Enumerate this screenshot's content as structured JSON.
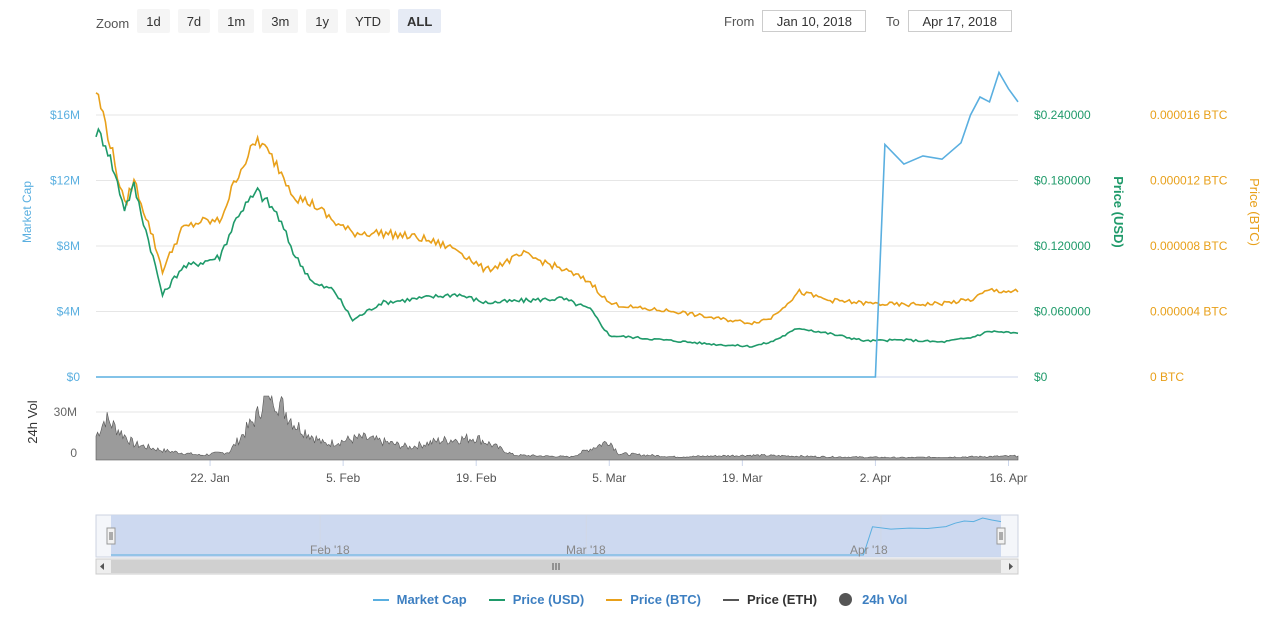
{
  "toolbar": {
    "zoom_label": "Zoom",
    "buttons": [
      "1d",
      "7d",
      "1m",
      "3m",
      "1y",
      "YTD",
      "ALL"
    ],
    "active": "ALL",
    "from_label": "From",
    "from_value": "Jan 10, 2018",
    "to_label": "To",
    "to_value": "Apr 17, 2018"
  },
  "chart_data": {
    "type": "line",
    "colors": {
      "market_cap": "#5aafe0",
      "price_usd": "#1f9a6a",
      "price_btc": "#e8a01a",
      "price_eth": "#555555",
      "volume": "#555555"
    },
    "axes": {
      "market_cap": {
        "label": "Market Cap",
        "ticks": [
          "$0",
          "$4M",
          "$8M",
          "$12M",
          "$16M"
        ],
        "range": [
          0,
          16000000
        ]
      },
      "price_usd": {
        "label": "Price (USD)",
        "ticks": [
          "$0",
          "$0.060000",
          "$0.120000",
          "$0.180000",
          "$0.240000"
        ],
        "range": [
          0,
          0.24
        ]
      },
      "price_btc": {
        "label": "Price (BTC)",
        "ticks": [
          "0 BTC",
          "0.000004 BTC",
          "0.000008 BTC",
          "0.000012 BTC",
          "0.000016 BTC"
        ],
        "range": [
          0,
          1.6e-05
        ]
      },
      "volume": {
        "label": "24h Vol",
        "ticks": [
          "0",
          "30M"
        ],
        "range": [
          0,
          30000000
        ]
      },
      "x_ticks": [
        "22. Jan",
        "5. Feb",
        "19. Feb",
        "5. Mar",
        "19. Mar",
        "2. Apr",
        "16. Apr"
      ],
      "x_range": [
        "2018-01-10",
        "2018-04-17"
      ]
    },
    "navigator_labels": [
      "Feb '18",
      "Mar '18",
      "Apr '18"
    ],
    "series": [
      {
        "name": "Market Cap",
        "x": [
          "2018-01-10",
          "2018-04-02",
          "2018-04-03",
          "2018-04-05",
          "2018-04-07",
          "2018-04-09",
          "2018-04-11",
          "2018-04-12",
          "2018-04-13",
          "2018-04-14",
          "2018-04-15",
          "2018-04-16",
          "2018-04-17"
        ],
        "values": [
          0,
          0,
          14200000,
          13000000,
          13500000,
          13300000,
          14300000,
          16000000,
          17100000,
          16800000,
          18600000,
          17600000,
          16800000
        ]
      },
      {
        "name": "Price (USD)",
        "x": [
          "2018-01-10",
          "2018-01-11",
          "2018-01-13",
          "2018-01-14",
          "2018-01-16",
          "2018-01-17",
          "2018-01-19",
          "2018-01-21",
          "2018-01-23",
          "2018-01-25",
          "2018-01-27",
          "2018-01-29",
          "2018-01-31",
          "2018-02-02",
          "2018-02-04",
          "2018-02-06",
          "2018-02-09",
          "2018-02-13",
          "2018-02-17",
          "2018-02-20",
          "2018-02-24",
          "2018-02-28",
          "2018-03-03",
          "2018-03-05",
          "2018-03-08",
          "2018-03-12",
          "2018-03-16",
          "2018-03-20",
          "2018-03-22",
          "2018-03-25",
          "2018-03-28",
          "2018-04-01",
          "2018-04-05",
          "2018-04-09",
          "2018-04-12",
          "2018-04-14",
          "2018-04-17"
        ],
        "values": [
          0.225,
          0.215,
          0.155,
          0.175,
          0.11,
          0.075,
          0.1,
          0.105,
          0.11,
          0.15,
          0.17,
          0.15,
          0.11,
          0.085,
          0.08,
          0.052,
          0.068,
          0.072,
          0.076,
          0.068,
          0.07,
          0.072,
          0.062,
          0.038,
          0.036,
          0.033,
          0.03,
          0.028,
          0.032,
          0.045,
          0.04,
          0.033,
          0.034,
          0.032,
          0.036,
          0.042,
          0.04
        ]
      },
      {
        "name": "Price (BTC)",
        "x": [
          "2018-01-10",
          "2018-01-11",
          "2018-01-13",
          "2018-01-14",
          "2018-01-16",
          "2018-01-17",
          "2018-01-19",
          "2018-01-21",
          "2018-01-23",
          "2018-01-25",
          "2018-01-27",
          "2018-01-29",
          "2018-01-31",
          "2018-02-02",
          "2018-02-04",
          "2018-02-06",
          "2018-02-09",
          "2018-02-13",
          "2018-02-17",
          "2018-02-20",
          "2018-02-24",
          "2018-02-28",
          "2018-03-03",
          "2018-03-05",
          "2018-03-08",
          "2018-03-12",
          "2018-03-16",
          "2018-03-20",
          "2018-03-22",
          "2018-03-25",
          "2018-03-28",
          "2018-04-01",
          "2018-04-05",
          "2018-04-09",
          "2018-04-12",
          "2018-04-14",
          "2018-04-17"
        ],
        "values": [
          0.0175,
          0.0155,
          0.0105,
          0.012,
          0.0085,
          0.0065,
          0.009,
          0.0095,
          0.0095,
          0.0125,
          0.0145,
          0.013,
          0.011,
          0.0105,
          0.0095,
          0.0088,
          0.0088,
          0.0085,
          0.0078,
          0.0065,
          0.0075,
          0.0066,
          0.0058,
          0.0045,
          0.0042,
          0.004,
          0.0036,
          0.0033,
          0.0036,
          0.0052,
          0.0047,
          0.0045,
          0.0044,
          0.0045,
          0.0047,
          0.0053,
          0.0052
        ]
      }
    ],
    "volume": {
      "x": [
        "2018-01-10",
        "2018-01-11",
        "2018-01-14",
        "2018-01-17",
        "2018-01-21",
        "2018-01-24",
        "2018-01-27",
        "2018-01-28",
        "2018-01-31",
        "2018-02-03",
        "2018-02-07",
        "2018-02-12",
        "2018-02-15",
        "2018-02-19",
        "2018-02-23",
        "2018-03-01",
        "2018-03-05",
        "2018-03-06",
        "2018-03-12",
        "2018-03-20",
        "2018-03-28",
        "2018-04-05",
        "2018-04-12",
        "2018-04-17"
      ],
      "values": [
        15000000,
        26000000,
        10000000,
        6000000,
        3000000,
        5000000,
        28000000,
        46000000,
        22000000,
        10000000,
        14000000,
        8000000,
        12000000,
        14000000,
        3000000,
        2000000,
        12000000,
        4000000,
        2000000,
        3000000,
        2000000,
        1500000,
        2000000,
        2500000
      ]
    }
  }
}
